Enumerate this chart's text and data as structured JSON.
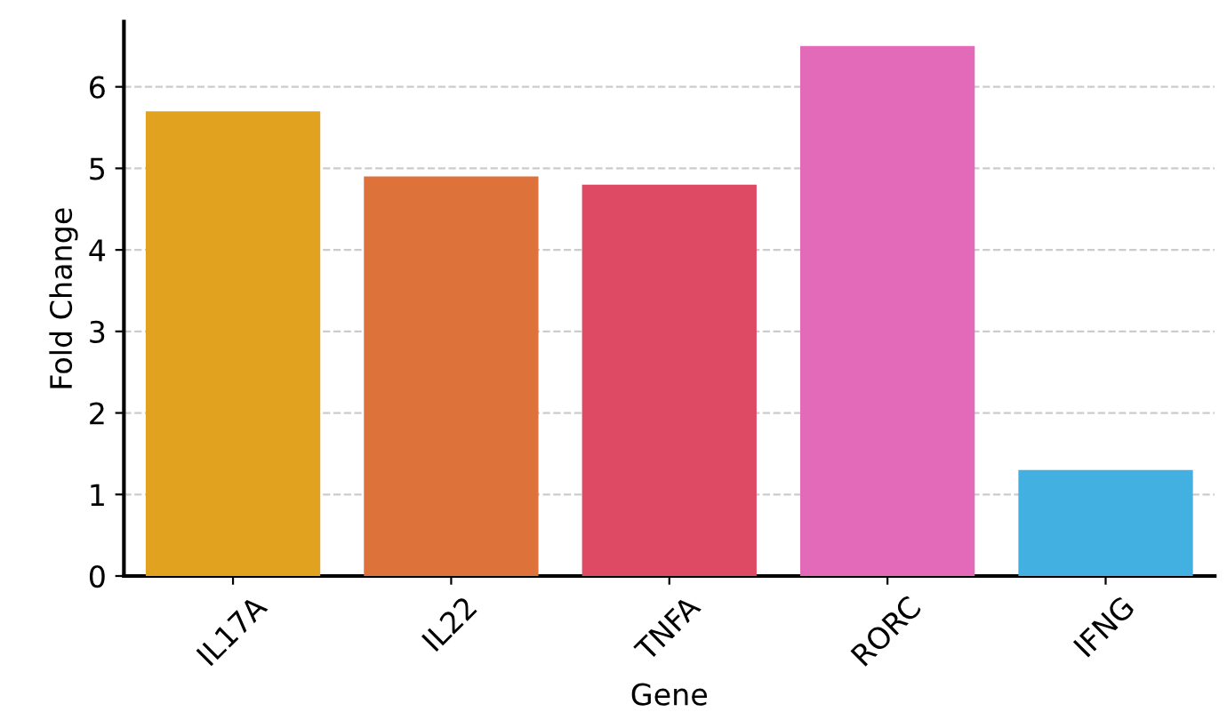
{
  "chart_data": {
    "type": "bar",
    "xlabel": "Gene",
    "ylabel": "Fold Change",
    "categories": [
      "IL17A",
      "IL22",
      "TNFA",
      "RORC",
      "IFNG"
    ],
    "values": [
      5.7,
      4.9,
      4.8,
      6.5,
      1.3
    ],
    "colors": [
      "#e0a21f",
      "#dd723a",
      "#de4a63",
      "#e26ab8",
      "#42b0e0"
    ],
    "ylim": [
      0,
      6.8
    ],
    "yticks": [
      0,
      1,
      2,
      3,
      4,
      5,
      6
    ],
    "grid": "y"
  }
}
